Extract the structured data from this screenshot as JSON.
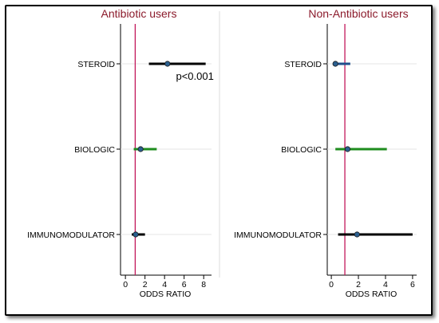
{
  "chart_data": [
    {
      "type": "forest",
      "title": "Antibiotic users",
      "xlabel": "ODDS RATIO",
      "ylabel": "",
      "xlim": [
        -0.5,
        8.8
      ],
      "xticks": [
        0,
        2,
        4,
        6,
        8
      ],
      "reference_line": 1,
      "categories": [
        "STEROID",
        "BIOLOGIC",
        "IMMUNOMODULATOR"
      ],
      "estimates": [
        4.3,
        1.55,
        1.05
      ],
      "lower": [
        2.4,
        0.85,
        0.65
      ],
      "upper": [
        8.2,
        3.2,
        2.0
      ],
      "colors": [
        "#000000",
        "#1e8c1e",
        "#000000"
      ],
      "annotations": [
        {
          "text": "p<0.001",
          "category": "STEROID",
          "x": 7.1
        }
      ]
    },
    {
      "type": "forest",
      "title": "Non-Antibiotic users",
      "xlabel": "ODDS RATIO",
      "ylabel": "",
      "xlim": [
        -0.3,
        6.3
      ],
      "xticks": [
        0,
        2,
        4,
        6
      ],
      "reference_line": 1,
      "categories": [
        "STEROID",
        "BIOLOGIC",
        "IMMUNOMODULATOR"
      ],
      "estimates": [
        0.3,
        1.2,
        1.9
      ],
      "lower": [
        0.15,
        0.3,
        0.5
      ],
      "upper": [
        1.4,
        4.1,
        6.0
      ],
      "colors": [
        "#1f4e8c",
        "#1e8c1e",
        "#000000"
      ],
      "annotations": []
    }
  ],
  "colors": {
    "reference_line": "#c2185b",
    "marker": "#2b5f8f",
    "title": "#8b1a2b"
  }
}
